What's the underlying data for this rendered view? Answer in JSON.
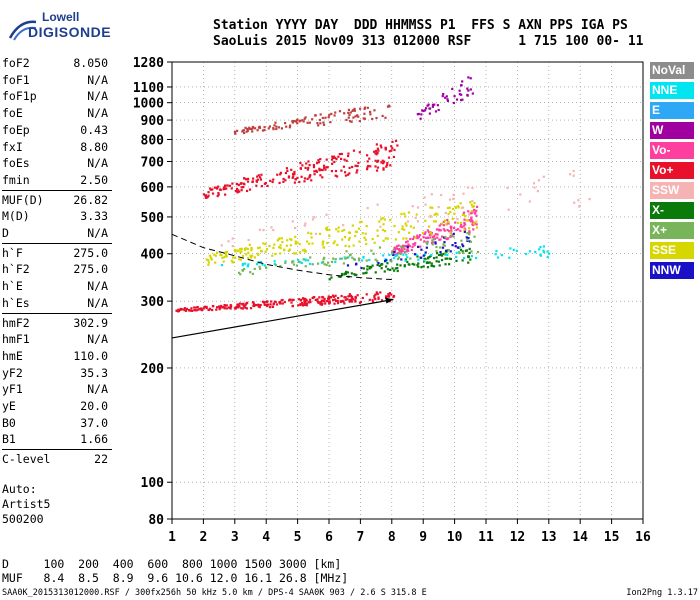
{
  "logo": {
    "line1": "Lowell",
    "line2": "DIGISONDE"
  },
  "header": {
    "line1": "Station YYYY DAY  DDD HHMMSS P1  FFS S AXN PPS IGA PS",
    "line2": "SaoLuis 2015 Nov09 313 012000 RSF      1 715 100 00- 11"
  },
  "params": [
    {
      "k": "foF2",
      "v": "8.050"
    },
    {
      "k": "foF1",
      "v": "N/A"
    },
    {
      "k": "foF1p",
      "v": "N/A"
    },
    {
      "k": "foE",
      "v": "N/A"
    },
    {
      "k": "foEp",
      "v": "0.43"
    },
    {
      "k": "fxI",
      "v": "8.80"
    },
    {
      "k": "foEs",
      "v": "N/A"
    },
    {
      "k": "fmin",
      "v": "2.50"
    },
    {
      "k": "MUF(D)",
      "v": "26.82"
    },
    {
      "k": "M(D)",
      "v": "3.33"
    },
    {
      "k": "D",
      "v": "N/A"
    },
    {
      "k": "h`F",
      "v": "275.0"
    },
    {
      "k": "h`F2",
      "v": "275.0"
    },
    {
      "k": "h`E",
      "v": "N/A"
    },
    {
      "k": "h`Es",
      "v": "N/A"
    },
    {
      "k": "hmF2",
      "v": "302.9"
    },
    {
      "k": "hmF1",
      "v": "N/A"
    },
    {
      "k": "hmE",
      "v": "110.0"
    },
    {
      "k": "yF2",
      "v": "35.3"
    },
    {
      "k": "yF1",
      "v": "N/A"
    },
    {
      "k": "yE",
      "v": "20.0"
    },
    {
      "k": "B0",
      "v": "37.0"
    },
    {
      "k": "B1",
      "v": "1.66"
    },
    {
      "k": "C-level",
      "v": "22"
    }
  ],
  "auto_text": "Auto:\nArtist5\n500200",
  "dmuf": {
    "line1": "D     100  200  400  600  800 1000 1500 3000 [km]",
    "line2": "MUF   8.4  8.5  8.9  9.6 10.6 12.0 16.1 26.8 [MHz]"
  },
  "footer_left": "SAA0K_2015313012000.RSF / 300fx256h 50 kHz 5.0 km / DPS-4 SAA0K 903 / 2.6 S 315.8 E",
  "footer_right": "Ion2Png 1.3.17",
  "legend": [
    {
      "label": "NoVal",
      "bg": "#8c8c8c",
      "fg": "#ffffff"
    },
    {
      "label": "NNE",
      "bg": "#00e5f0",
      "fg": "#ffffff"
    },
    {
      "label": "E",
      "bg": "#2ea7f5",
      "fg": "#ffffff"
    },
    {
      "label": "W",
      "bg": "#a000a0",
      "fg": "#ffffff"
    },
    {
      "label": "Vo-",
      "bg": "#ff3fa0",
      "fg": "#ffffff"
    },
    {
      "label": "Vo+",
      "bg": "#e8102a",
      "fg": "#ffffff"
    },
    {
      "label": "SSW",
      "bg": "#f5b3b3",
      "fg": "#ffffff"
    },
    {
      "label": "X-",
      "bg": "#0a7a0a",
      "fg": "#ffffff"
    },
    {
      "label": "X+",
      "bg": "#78b55a",
      "fg": "#ffffff"
    },
    {
      "label": "SSE",
      "bg": "#d6d600",
      "fg": "#ffffff"
    },
    {
      "label": "NNW",
      "bg": "#1a10c8",
      "fg": "#ffffff"
    }
  ],
  "chart_data": {
    "type": "scatter",
    "title": "",
    "xlabel": "",
    "ylabel": "",
    "x_axis": {
      "min": 1,
      "max": 16,
      "ticks": [
        1,
        2,
        3,
        4,
        5,
        6,
        7,
        8,
        9,
        10,
        11,
        12,
        13,
        14,
        15,
        16
      ]
    },
    "y_axis": {
      "scale": "log",
      "min": 80,
      "max": 1280,
      "ticks": [
        80,
        100,
        200,
        300,
        400,
        500,
        600,
        700,
        800,
        900,
        1000,
        1100,
        1280
      ]
    },
    "grid": true,
    "clusters": [
      {
        "name": "Vo+ F2 trace (O-mode)",
        "color": "#e8102a",
        "x0": 1.1,
        "x1": 8.1,
        "y0": 275,
        "y1": 320,
        "n": 260
      },
      {
        "name": "Vo+ second hop",
        "color": "#e8102a",
        "x0": 2.0,
        "x1": 8.2,
        "y0": 520,
        "y1": 800,
        "n": 220
      },
      {
        "name": "Vo- scatter",
        "color": "#ff3fa0",
        "x0": 8.0,
        "x1": 10.8,
        "y0": 370,
        "y1": 540,
        "n": 160
      },
      {
        "name": "X- trace",
        "color": "#0a7a0a",
        "x0": 6.0,
        "x1": 10.5,
        "y0": 330,
        "y1": 420,
        "n": 110
      },
      {
        "name": "SSE traces",
        "color": "#d6d600",
        "x0": 2.0,
        "x1": 10.8,
        "y0": 340,
        "y1": 560,
        "n": 230
      },
      {
        "name": "third hop",
        "color": "#c04040",
        "x0": 3.0,
        "x1": 8.0,
        "y0": 800,
        "y1": 1000,
        "n": 110
      },
      {
        "name": "upper spread",
        "color": "#a000a0",
        "x0": 8.8,
        "x1": 10.6,
        "y0": 850,
        "y1": 1200,
        "n": 45
      },
      {
        "name": "NNE",
        "color": "#00e5f0",
        "x0": 2.5,
        "x1": 13.2,
        "y0": 360,
        "y1": 420,
        "n": 80
      },
      {
        "name": "NNW",
        "color": "#1a10c8",
        "x0": 6.5,
        "x1": 10.5,
        "y0": 340,
        "y1": 470,
        "n": 40
      },
      {
        "name": "X+",
        "color": "#78b55a",
        "x0": 3.0,
        "x1": 10.8,
        "y0": 330,
        "y1": 460,
        "n": 90
      },
      {
        "name": "SSW",
        "color": "#f5b3b3",
        "x0": 2.5,
        "x1": 14.3,
        "y0": 360,
        "y1": 680,
        "n": 60
      }
    ],
    "profile_line": {
      "points": [
        [
          1.0,
          240
        ],
        [
          8.05,
          303
        ]
      ]
    },
    "dashed_curve": {
      "points": [
        [
          1.0,
          450
        ],
        [
          2.0,
          415
        ],
        [
          3.0,
          395
        ],
        [
          4.0,
          375
        ],
        [
          5.0,
          362
        ],
        [
          6.0,
          352
        ],
        [
          7.0,
          346
        ],
        [
          8.0,
          342
        ]
      ]
    }
  }
}
